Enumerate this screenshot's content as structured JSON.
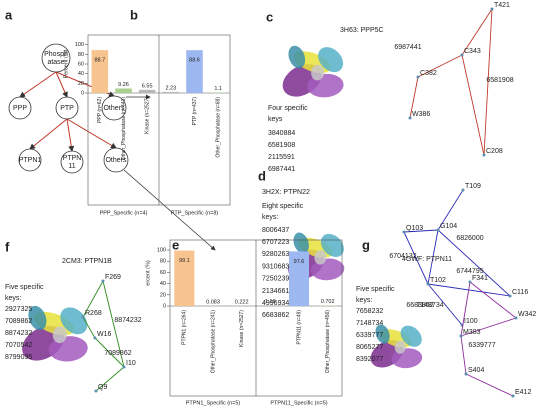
{
  "chart_data": [
    {
      "type": "bar",
      "panel": "b",
      "ylabel": "Percent (%)",
      "categories": [
        "PPP (n=62)",
        "Other_Phosphatase (n=443)",
        "Kinase (n=2527)",
        null,
        "PTP (n=437)",
        "Other_Phosphatase (n=68)"
      ],
      "values": [
        88.7,
        9.26,
        6.55,
        2.23,
        88.6,
        1.1
      ],
      "colors": [
        "#f7c38f",
        "#a9d08e",
        "#b7b7b7",
        "#b7b7b7",
        "#9db8f0",
        "#a9d08e"
      ],
      "ylim": [
        0,
        120
      ],
      "yticks": [
        0,
        20,
        40,
        60,
        80,
        100
      ],
      "groups": [
        "PPP_Specific (n=4)",
        "PTP_Specific (n=8)"
      ]
    },
    {
      "type": "bar",
      "panel": "e",
      "ylabel": "ercent (%)",
      "categories": [
        "PTPN1 (n=264)",
        "Other_Phosphatase (n=241)",
        "Kinase (n=2527)",
        null,
        "PTPN11 (n=49)",
        "Other_Phosphatase (n=456)"
      ],
      "values": [
        99.1,
        0.083,
        0.222,
        1.16,
        97.6,
        0.702
      ],
      "colors": [
        "#f7c38f",
        "#a9d08e",
        "#b7b7b7",
        "#b7b7b7",
        "#9db8f0",
        "#a9d08e"
      ],
      "ylim": [
        0,
        118
      ],
      "yticks": [
        0,
        20,
        40,
        60,
        80,
        100
      ],
      "groups": [
        "PTPN1_Specific (n=5)",
        "PTPN11_Specific (n=5)"
      ]
    }
  ],
  "tree": {
    "panel": "a",
    "nodes": [
      [
        "Phosph",
        "atase"
      ],
      [
        "PPP"
      ],
      [
        "PTP"
      ],
      [
        "Others"
      ],
      [
        "PTPN1"
      ],
      [
        "PTPN",
        "11"
      ],
      [
        "Others"
      ]
    ]
  },
  "structures": [
    {
      "panel": "c",
      "title": "3H63: PPP5C",
      "color": "#c0392b",
      "heading": [
        "Four specific",
        "keys"
      ],
      "keys": [
        "3840884",
        "6581908",
        "2115591",
        "6987441"
      ],
      "residues": [
        "T421",
        "C343",
        "C382",
        "W386",
        "C208"
      ],
      "edges": [
        "6987441",
        "6581908"
      ]
    },
    {
      "panel": "d",
      "title": "3H2X: PTPN22",
      "color": "#2b2bb8",
      "heading": [
        "Eight specific",
        "keys:"
      ],
      "keys": [
        "8006437",
        "6707223",
        "9280263",
        "9310683",
        "7250239",
        "2134661",
        "4996934",
        "6683862"
      ],
      "residues": [
        "T109",
        "Q103",
        "G104",
        "T102",
        "C116",
        "I100"
      ],
      "edges": [
        "6826000",
        "6704132",
        "6744795",
        "6683862"
      ]
    },
    {
      "panel": "f",
      "title": "2CM3: PTPN1B",
      "color": "#2e8b1e",
      "heading": [
        "Five specific",
        "keys:"
      ],
      "keys": [
        "2927325",
        "7089862",
        "8874232",
        "7070542",
        "8799095"
      ],
      "residues": [
        "F269",
        "R268",
        "W16",
        "I10",
        "Q9"
      ],
      "edges": [
        "8874232",
        "7089862"
      ]
    },
    {
      "panel": "g",
      "title": "4GWF: PTPN11",
      "color": "#8e2a9e",
      "heading": [
        "Five specific",
        "keys:"
      ],
      "keys": [
        "7658232",
        "7148734",
        "6339777",
        "8065277",
        "8392077"
      ],
      "residues": [
        "F341",
        "W342",
        "M383",
        "S404",
        "E412"
      ],
      "edges": [
        "7148734",
        "6339777"
      ]
    }
  ]
}
